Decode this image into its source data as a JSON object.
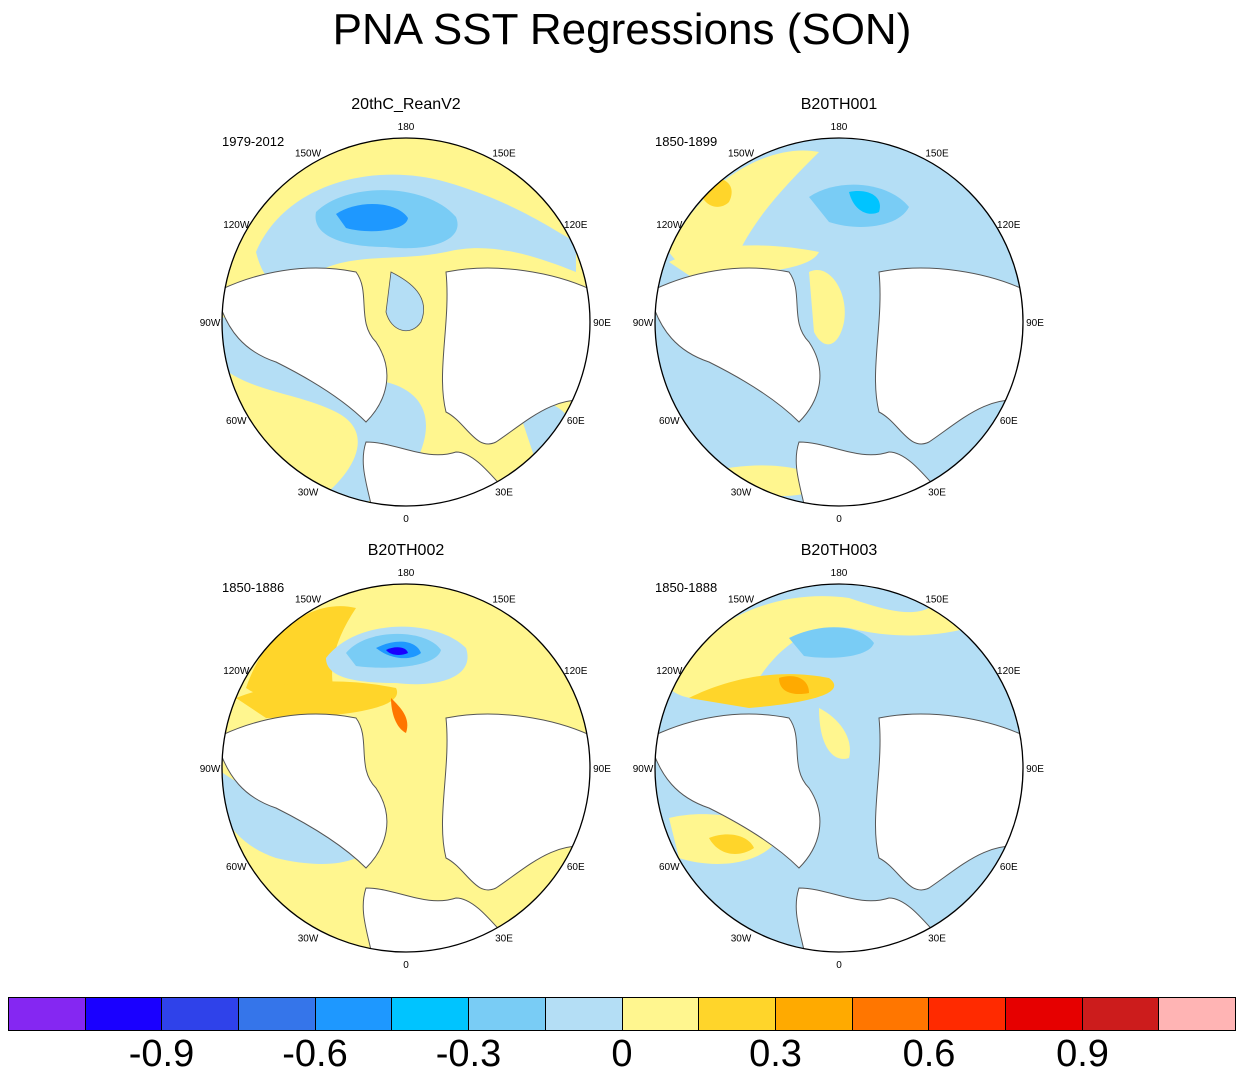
{
  "title": "PNA SST Regressions (SON)",
  "panels": [
    {
      "name": "20thC_ReanV2",
      "period": "1979-2012"
    },
    {
      "name": "B20TH001",
      "period": "1850-1899"
    },
    {
      "name": "B20TH002",
      "period": "1850-1886"
    },
    {
      "name": "B20TH003",
      "period": "1850-1888"
    }
  ],
  "lon_labels": [
    "180",
    "150E",
    "120E",
    "90E",
    "60E",
    "30E",
    "0",
    "30W",
    "60W",
    "90W",
    "120W",
    "150W"
  ],
  "colorbar": {
    "colors": [
      "#8527f2",
      "#1a00ff",
      "#2f42ea",
      "#3575ea",
      "#1e98ff",
      "#00c4ff",
      "#79ccf5",
      "#b4def5",
      "#fff68f",
      "#ffd52a",
      "#ffaa00",
      "#ff7600",
      "#ff2a00",
      "#e60000",
      "#cc1c1c",
      "#ffb4b4"
    ],
    "labels": [
      "-0.9",
      "-0.6",
      "-0.3",
      "0",
      "0.3",
      "0.6",
      "0.9"
    ]
  },
  "colors": {
    "land": "#ffffff",
    "coast": "#555555",
    "border": "#000000",
    "neutral_neg": "#b4def5",
    "neutral_pos": "#fff68f"
  }
}
